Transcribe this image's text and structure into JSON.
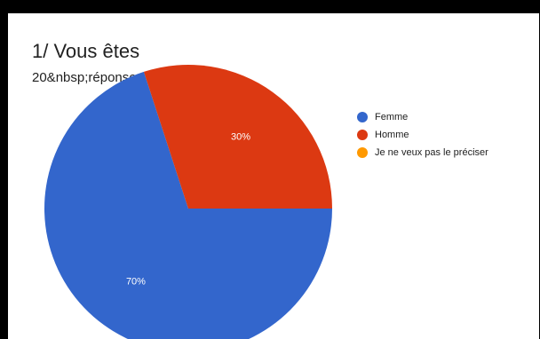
{
  "chart_data": {
    "type": "pie",
    "title": "1/ Vous êtes",
    "subtitle": "20&nbsp;réponses",
    "categories": [
      "Femme",
      "Homme",
      "Je ne veux pas le préciser"
    ],
    "values": [
      70,
      30,
      0
    ],
    "value_labels": [
      "70%",
      "30%",
      ""
    ],
    "colors": [
      "#3366cc",
      "#dc3912",
      "#ff9900"
    ],
    "legend_position": "right"
  }
}
